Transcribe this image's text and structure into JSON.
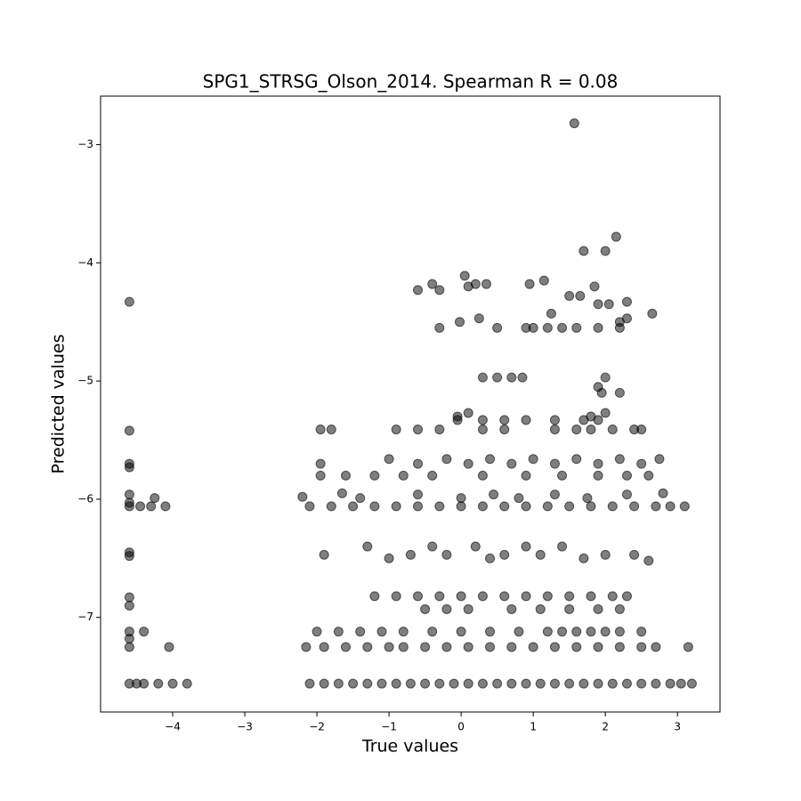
{
  "chart_data": {
    "type": "scatter",
    "title": "SPG1_STRSG_Olson_2014. Spearman R = 0.08",
    "xlabel": "True values",
    "ylabel": "Predicted values",
    "color": "#000000",
    "grid": false,
    "xlim": [
      -5.0,
      3.59
    ],
    "ylim": [
      -7.8,
      -2.59
    ],
    "xticks": [
      {
        "value": -4,
        "label": "−4"
      },
      {
        "value": -3,
        "label": "−3"
      },
      {
        "value": -2,
        "label": "−2"
      },
      {
        "value": -1,
        "label": "−1"
      },
      0,
      1,
      2,
      3
    ],
    "yticks": [
      {
        "value": -7,
        "label": "−7"
      },
      {
        "value": -6,
        "label": "−6"
      },
      {
        "value": -5,
        "label": "−5"
      },
      {
        "value": -4,
        "label": "−4"
      },
      {
        "value": -3,
        "label": "−3"
      }
    ],
    "x": [
      -4.6,
      -4.6,
      -4.6,
      -4.6,
      -4.6,
      -4.6,
      -4.6,
      -4.6,
      -4.6,
      -4.6,
      -4.6,
      -4.6,
      -4.6,
      -4.6,
      -4.6,
      -4.5,
      -4.4,
      -4.2,
      -4.0,
      -3.8,
      -4.45,
      -4.3,
      -4.1,
      -4.25,
      -4.05,
      -4.4,
      -2.1,
      -1.9,
      -1.7,
      -1.5,
      -1.3,
      -1.1,
      -0.9,
      -0.7,
      -0.5,
      -0.3,
      -0.1,
      0.1,
      0.3,
      0.5,
      0.7,
      0.9,
      1.1,
      1.3,
      1.5,
      1.7,
      1.9,
      2.1,
      2.3,
      2.5,
      2.7,
      2.9,
      3.05,
      3.2,
      -2.15,
      -1.9,
      -1.6,
      -1.3,
      -1.0,
      -0.8,
      -0.5,
      -0.2,
      0.1,
      0.4,
      0.7,
      1.0,
      1.3,
      1.6,
      1.9,
      2.2,
      2.5,
      2.7,
      3.15,
      -2.0,
      -1.7,
      -1.4,
      -1.1,
      -0.8,
      -0.4,
      0.0,
      0.4,
      0.8,
      1.2,
      1.4,
      1.6,
      1.8,
      2.0,
      2.2,
      2.5,
      -0.5,
      -0.2,
      0.1,
      0.7,
      1.1,
      1.5,
      1.9,
      2.2,
      -1.2,
      -0.9,
      -0.6,
      -0.3,
      0.0,
      0.3,
      0.6,
      0.9,
      1.2,
      1.5,
      1.8,
      2.1,
      2.3,
      -1.9,
      -1.3,
      -1.0,
      -0.7,
      -0.4,
      -0.2,
      0.2,
      0.4,
      0.6,
      0.9,
      1.1,
      1.4,
      1.7,
      2.0,
      2.4,
      2.6,
      -2.1,
      -1.8,
      -1.5,
      -1.2,
      -0.9,
      -0.6,
      -0.3,
      0.0,
      0.3,
      0.6,
      0.9,
      1.2,
      1.5,
      1.8,
      2.1,
      2.4,
      2.7,
      2.9,
      3.1,
      -2.2,
      -1.65,
      -1.4,
      -0.6,
      0.0,
      0.45,
      0.8,
      1.3,
      1.75,
      2.3,
      2.8,
      -1.95,
      -1.6,
      -1.2,
      -0.8,
      -0.4,
      0.3,
      0.9,
      1.4,
      1.9,
      2.3,
      2.6,
      -1.95,
      -1.0,
      -0.6,
      -0.2,
      0.1,
      0.4,
      0.7,
      1.0,
      1.3,
      1.6,
      1.9,
      2.2,
      2.5,
      2.75,
      -1.95,
      -1.8,
      -0.9,
      -0.6,
      -0.3,
      0.3,
      0.6,
      1.3,
      1.6,
      1.8,
      2.1,
      2.4,
      2.5,
      -0.05,
      0.3,
      0.6,
      0.9,
      1.3,
      1.7,
      1.9,
      0.1,
      -0.05,
      2.0,
      1.8,
      0.3,
      0.5,
      0.7,
      0.85,
      2.0,
      1.95,
      2.2,
      1.9,
      -0.3,
      0.5,
      0.9,
      1.0,
      1.2,
      1.4,
      1.6,
      1.9,
      2.2,
      -0.6,
      -0.4,
      -0.3,
      0.05,
      0.1,
      0.2,
      0.35,
      0.95,
      1.15,
      1.5,
      1.65,
      1.85,
      1.9,
      2.05,
      2.3,
      2.65,
      1.25,
      0.25,
      -0.02,
      2.2,
      2.3,
      1.7,
      2.0,
      2.15,
      1.57
    ],
    "values": [
      -4.33,
      -5.42,
      -5.7,
      -5.73,
      -5.96,
      -6.03,
      -6.06,
      -6.45,
      -6.48,
      -6.83,
      -6.9,
      -7.12,
      -7.18,
      -7.25,
      -7.56,
      -7.56,
      -7.56,
      -7.56,
      -7.56,
      -7.56,
      -6.06,
      -6.06,
      -6.06,
      -5.99,
      -7.25,
      -7.12,
      -7.56,
      -7.56,
      -7.56,
      -7.56,
      -7.56,
      -7.56,
      -7.56,
      -7.56,
      -7.56,
      -7.56,
      -7.56,
      -7.56,
      -7.56,
      -7.56,
      -7.56,
      -7.56,
      -7.56,
      -7.56,
      -7.56,
      -7.56,
      -7.56,
      -7.56,
      -7.56,
      -7.56,
      -7.56,
      -7.56,
      -7.56,
      -7.56,
      -7.25,
      -7.25,
      -7.25,
      -7.25,
      -7.25,
      -7.25,
      -7.25,
      -7.25,
      -7.25,
      -7.25,
      -7.25,
      -7.25,
      -7.25,
      -7.25,
      -7.25,
      -7.25,
      -7.25,
      -7.25,
      -7.25,
      -7.12,
      -7.12,
      -7.12,
      -7.12,
      -7.12,
      -7.12,
      -7.12,
      -7.12,
      -7.12,
      -7.12,
      -7.12,
      -7.12,
      -7.12,
      -7.12,
      -7.12,
      -7.12,
      -6.93,
      -6.93,
      -6.93,
      -6.93,
      -6.93,
      -6.93,
      -6.93,
      -6.93,
      -6.82,
      -6.82,
      -6.82,
      -6.82,
      -6.82,
      -6.82,
      -6.82,
      -6.82,
      -6.82,
      -6.82,
      -6.82,
      -6.82,
      -6.82,
      -6.47,
      -6.4,
      -6.5,
      -6.47,
      -6.4,
      -6.47,
      -6.4,
      -6.5,
      -6.47,
      -6.4,
      -6.47,
      -6.4,
      -6.5,
      -6.47,
      -6.47,
      -6.52,
      -6.06,
      -6.06,
      -6.06,
      -6.06,
      -6.06,
      -6.06,
      -6.06,
      -6.06,
      -6.06,
      -6.06,
      -6.06,
      -6.06,
      -6.06,
      -6.06,
      -6.06,
      -6.06,
      -6.06,
      -6.06,
      -6.06,
      -5.98,
      -5.95,
      -5.99,
      -5.96,
      -5.99,
      -5.96,
      -5.99,
      -5.96,
      -5.99,
      -5.96,
      -5.95,
      -5.8,
      -5.8,
      -5.8,
      -5.8,
      -5.8,
      -5.8,
      -5.8,
      -5.8,
      -5.8,
      -5.8,
      -5.8,
      -5.7,
      -5.66,
      -5.7,
      -5.66,
      -5.7,
      -5.66,
      -5.7,
      -5.66,
      -5.7,
      -5.66,
      -5.7,
      -5.66,
      -5.7,
      -5.66,
      -5.41,
      -5.41,
      -5.41,
      -5.41,
      -5.41,
      -5.41,
      -5.41,
      -5.41,
      -5.41,
      -5.41,
      -5.41,
      -5.41,
      -5.41,
      -5.33,
      -5.33,
      -5.33,
      -5.33,
      -5.33,
      -5.33,
      -5.33,
      -5.27,
      -5.3,
      -5.27,
      -5.3,
      -4.97,
      -4.97,
      -4.97,
      -4.97,
      -4.97,
      -5.1,
      -5.1,
      -5.05,
      -4.55,
      -4.55,
      -4.55,
      -4.55,
      -4.55,
      -4.55,
      -4.55,
      -4.55,
      -4.55,
      -4.23,
      -4.18,
      -4.23,
      -4.11,
      -4.2,
      -4.18,
      -4.18,
      -4.18,
      -4.15,
      -4.28,
      -4.28,
      -4.2,
      -4.35,
      -4.35,
      -4.33,
      -4.43,
      -4.43,
      -4.47,
      -4.5,
      -4.5,
      -4.47,
      -3.9,
      -3.9,
      -3.78,
      -2.82
    ]
  }
}
